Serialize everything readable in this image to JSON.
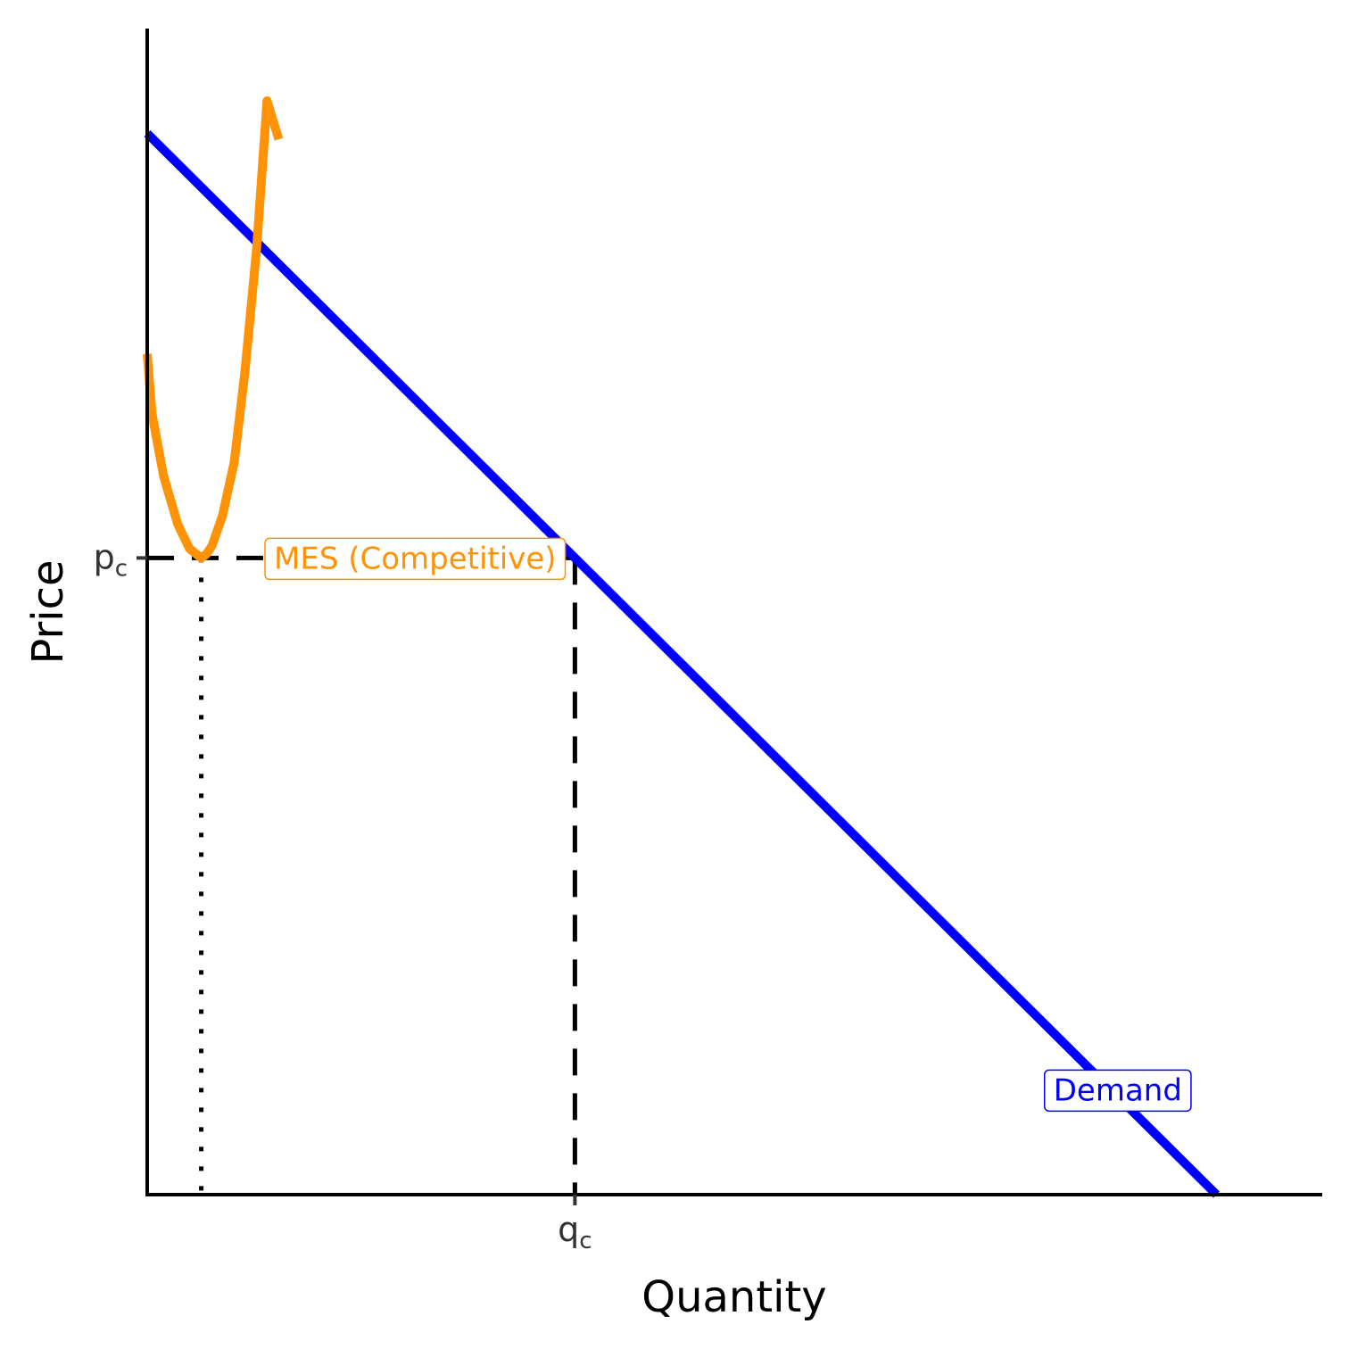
{
  "chart_data": {
    "type": "line",
    "title": "",
    "xlabel": "Quantity",
    "ylabel": "Price",
    "xlim": [
      0,
      100
    ],
    "ylim": [
      0,
      100
    ],
    "grid": false,
    "x_ticks": [
      {
        "main": "q",
        "sub": "c",
        "value": 36.4
      }
    ],
    "y_ticks": [
      {
        "main": "p",
        "sub": "c",
        "value": 54.6
      }
    ],
    "series": [
      {
        "name": "Demand",
        "color": "#0000ff",
        "x": [
          0,
          91
        ],
        "y": [
          91,
          0
        ]
      },
      {
        "name": "MES (Competitive)",
        "color": "#ff9305",
        "x": [
          0,
          0.4,
          1.4,
          2.6,
          3.6,
          4.6,
          5.0,
          5.5,
          6.4,
          7.4,
          8.3,
          9.3,
          10.2,
          11.2
        ],
        "y": [
          72.1,
          67.0,
          61.6,
          57.5,
          55.4,
          54.6,
          54.9,
          55.6,
          58.2,
          62.8,
          70.4,
          81.0,
          93.8,
          90.5
        ]
      }
    ],
    "reference_lines": {
      "p_c": 54.6,
      "q_c": 36.4,
      "mes_q": 4.6
    },
    "annotations": [
      {
        "text": "MES (Competitive)",
        "x": 22.8,
        "y": 54.6,
        "color": "#ff9305"
      },
      {
        "text": "Demand",
        "x": 82.6,
        "y": 9.0,
        "color": "#0000ff"
      }
    ]
  }
}
